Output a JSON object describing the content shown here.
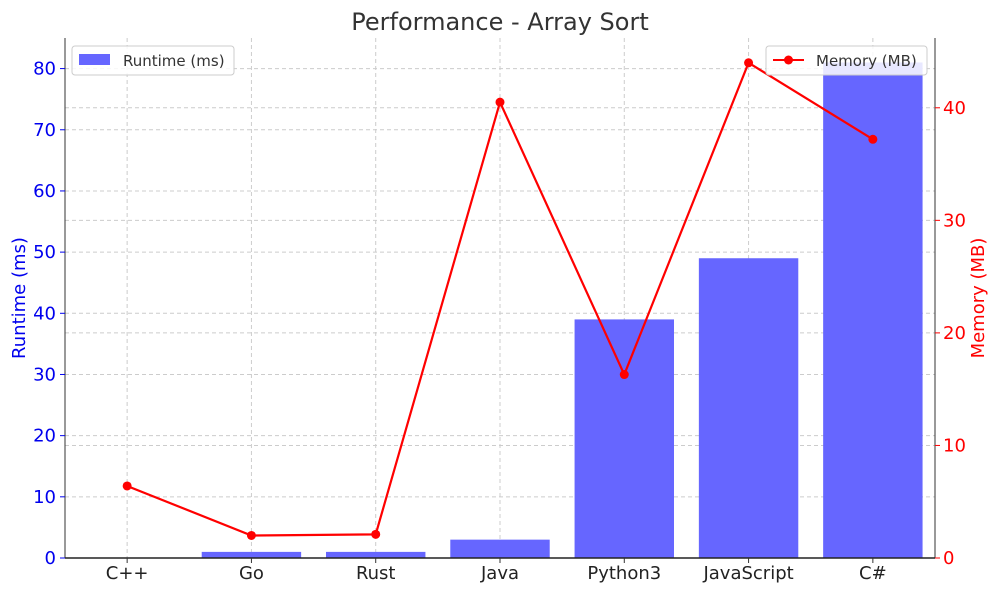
{
  "chart_data": {
    "type": "bar",
    "title": "Performance - Array Sort",
    "categories": [
      "C++",
      "Go",
      "Rust",
      "Java",
      "Python3",
      "JavaScript",
      "C#"
    ],
    "series": [
      {
        "name": "Runtime (ms)",
        "type": "bar",
        "axis": "left",
        "color": "#6666ff",
        "values": [
          0,
          1,
          1,
          3,
          39,
          49,
          81
        ]
      },
      {
        "name": "Memory (MB)",
        "type": "line",
        "axis": "right",
        "color": "#ff0000",
        "values": [
          6.4,
          2.0,
          2.1,
          40.5,
          16.3,
          44.0,
          37.2
        ]
      }
    ],
    "ylabel": "Runtime (ms)",
    "ylabel_color": "#0000ee",
    "ylim": [
      0,
      85
    ],
    "yticks": [
      0,
      10,
      20,
      30,
      40,
      50,
      60,
      70,
      80
    ],
    "y2label": "Memory (MB)",
    "y2label_color": "#ff0000",
    "y2lim": [
      0,
      46.2
    ],
    "y2ticks": [
      0,
      10,
      20,
      30,
      40
    ],
    "grid": true,
    "legend_bar_position": "top-left",
    "legend_line_position": "top-right"
  }
}
